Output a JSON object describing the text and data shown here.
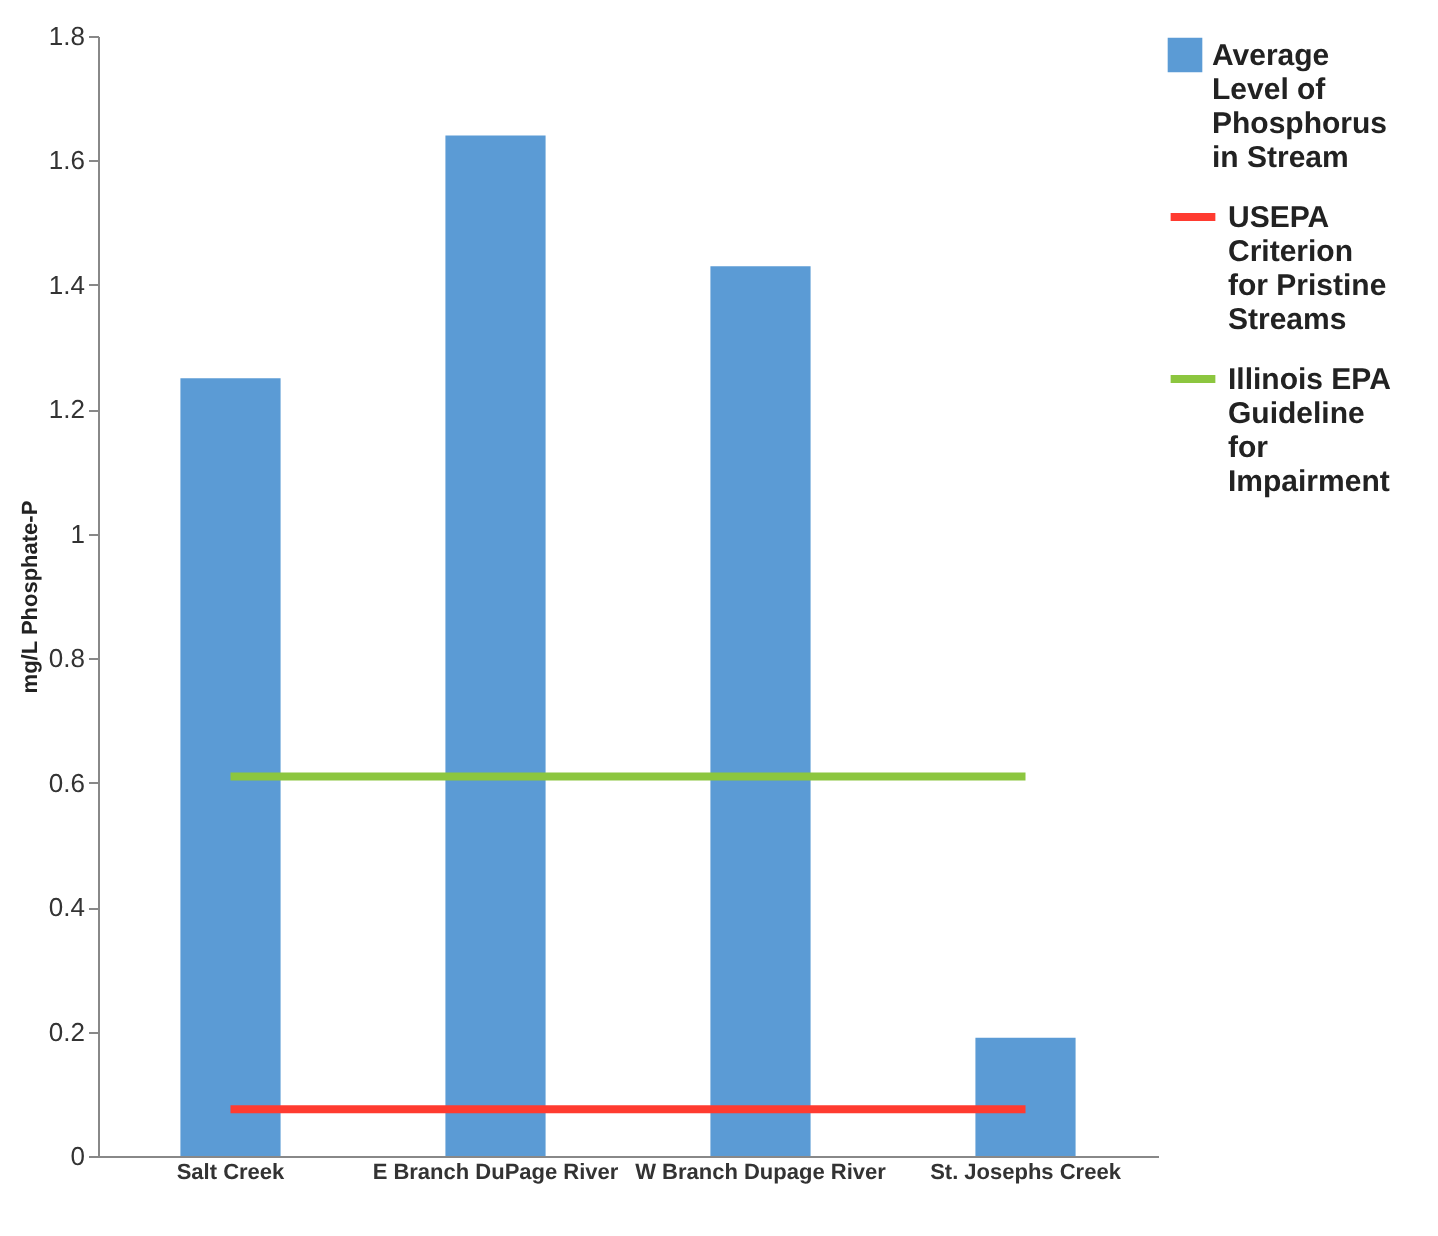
{
  "chart_data": {
    "type": "bar",
    "ylabel": "mg/L Phosphate-P",
    "categories": [
      "Salt Creek",
      "E Branch DuPage River",
      "W Branch Dupage River",
      "St. Josephs Creek"
    ],
    "series": [
      {
        "name": "Average Level of Phosphorus in Stream",
        "color": "#5b9bd5",
        "values": [
          1.25,
          1.64,
          1.43,
          0.19
        ]
      },
      {
        "name": "USEPA Criterion for Pristine Streams",
        "type": "line",
        "color": "#ff3b30",
        "values": [
          0.075,
          0.075,
          0.075,
          0.075
        ]
      },
      {
        "name": "Illinois EPA Guideline for Impairment",
        "type": "line",
        "color": "#8cc63f",
        "values": [
          0.61,
          0.61,
          0.61,
          0.61
        ]
      }
    ],
    "ylim": [
      0,
      1.8
    ],
    "yticks": [
      0,
      0.2,
      0.4,
      0.6,
      0.8,
      1,
      1.2,
      1.4,
      1.6,
      1.8
    ],
    "grid": false,
    "legend": "right",
    "marker": "none"
  }
}
